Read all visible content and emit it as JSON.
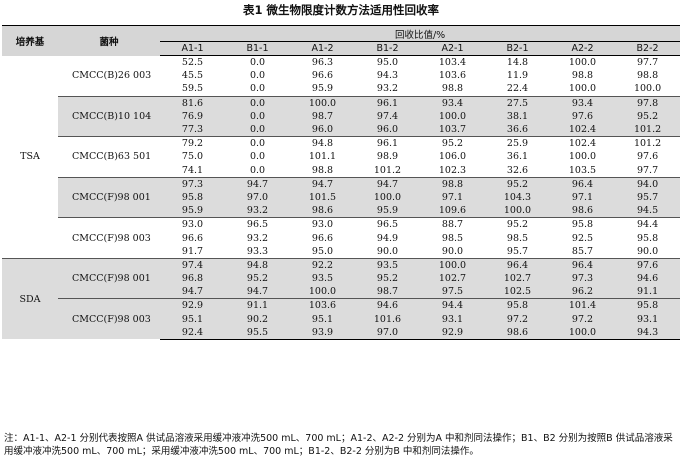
{
  "title": "表1 微生物限度计数方法适用性回收率",
  "header": {
    "medium": "培养基",
    "strain": "菌种",
    "group": "回收比值/%",
    "cols": [
      "A1-1",
      "B1-1",
      "A1-2",
      "B1-2",
      "A2-1",
      "B2-1",
      "A2-2",
      "B2-2"
    ]
  },
  "media": [
    "TSA",
    "SDA"
  ],
  "strains": [
    "CMCC(B)26 003",
    "CMCC(B)10 104",
    "CMCC(B)63 501",
    "CMCC(F)98 001",
    "CMCC(F)98 003",
    "CMCC(F)98 001",
    "CMCC(F)98 003"
  ],
  "rows": [
    [
      "52.5",
      "0.0",
      "96.3",
      "95.0",
      "103.4",
      "14.8",
      "100.0",
      "97.7"
    ],
    [
      "45.5",
      "0.0",
      "96.6",
      "94.3",
      "103.6",
      "11.9",
      "98.8",
      "98.8"
    ],
    [
      "59.5",
      "0.0",
      "95.9",
      "93.2",
      "98.8",
      "22.4",
      "100.0",
      "100.0"
    ],
    [
      "81.6",
      "0.0",
      "100.0",
      "96.1",
      "93.4",
      "27.5",
      "93.4",
      "97.8"
    ],
    [
      "76.9",
      "0.0",
      "98.7",
      "97.4",
      "100.0",
      "38.1",
      "97.6",
      "95.2"
    ],
    [
      "77.3",
      "0.0",
      "96.0",
      "96.0",
      "103.7",
      "36.6",
      "102.4",
      "101.2"
    ],
    [
      "79.2",
      "0.0",
      "94.8",
      "96.1",
      "95.2",
      "25.9",
      "102.4",
      "101.2"
    ],
    [
      "75.0",
      "0.0",
      "101.1",
      "98.9",
      "106.0",
      "36.1",
      "100.0",
      "97.6"
    ],
    [
      "74.1",
      "0.0",
      "98.8",
      "101.2",
      "102.3",
      "32.6",
      "103.5",
      "97.7"
    ],
    [
      "97.3",
      "94.7",
      "94.7",
      "94.7",
      "98.8",
      "95.2",
      "96.4",
      "94.0"
    ],
    [
      "95.8",
      "97.0",
      "101.5",
      "100.0",
      "97.1",
      "104.3",
      "97.1",
      "95.7"
    ],
    [
      "95.9",
      "93.2",
      "98.6",
      "95.9",
      "109.6",
      "100.0",
      "98.6",
      "94.5"
    ],
    [
      "93.0",
      "96.5",
      "93.0",
      "96.5",
      "88.7",
      "95.2",
      "95.8",
      "94.4"
    ],
    [
      "96.6",
      "93.2",
      "96.6",
      "94.9",
      "98.5",
      "98.5",
      "92.5",
      "95.8"
    ],
    [
      "91.7",
      "93.3",
      "95.0",
      "90.0",
      "90.0",
      "95.7",
      "85.7",
      "90.0"
    ],
    [
      "97.4",
      "94.8",
      "92.2",
      "93.5",
      "100.0",
      "96.4",
      "96.4",
      "97.6"
    ],
    [
      "96.8",
      "95.2",
      "93.5",
      "95.2",
      "102.7",
      "102.7",
      "97.3",
      "94.6"
    ],
    [
      "94.7",
      "94.7",
      "100.0",
      "98.7",
      "97.5",
      "102.5",
      "96.2",
      "91.1"
    ],
    [
      "92.9",
      "91.1",
      "103.6",
      "94.6",
      "94.4",
      "95.8",
      "101.4",
      "95.8"
    ],
    [
      "95.1",
      "90.2",
      "95.1",
      "101.6",
      "93.1",
      "97.2",
      "97.2",
      "93.1"
    ],
    [
      "92.4",
      "95.5",
      "93.9",
      "97.0",
      "92.9",
      "98.6",
      "100.0",
      "94.3"
    ]
  ],
  "note": "注：A1-1、A2-1 分别代表按照A 供试品溶液采用缓冲液冲洗500 mL、700 mL；A1-2、A2-2 分别为A 中和剂同法操作；B1、B2 分别为按照B 供试品溶液采用缓冲液冲洗500 mL、700 mL；采用缓冲液冲洗500 mL、700 mL；B1-2、B2-2 分别为B 中和剂同法操作。"
}
